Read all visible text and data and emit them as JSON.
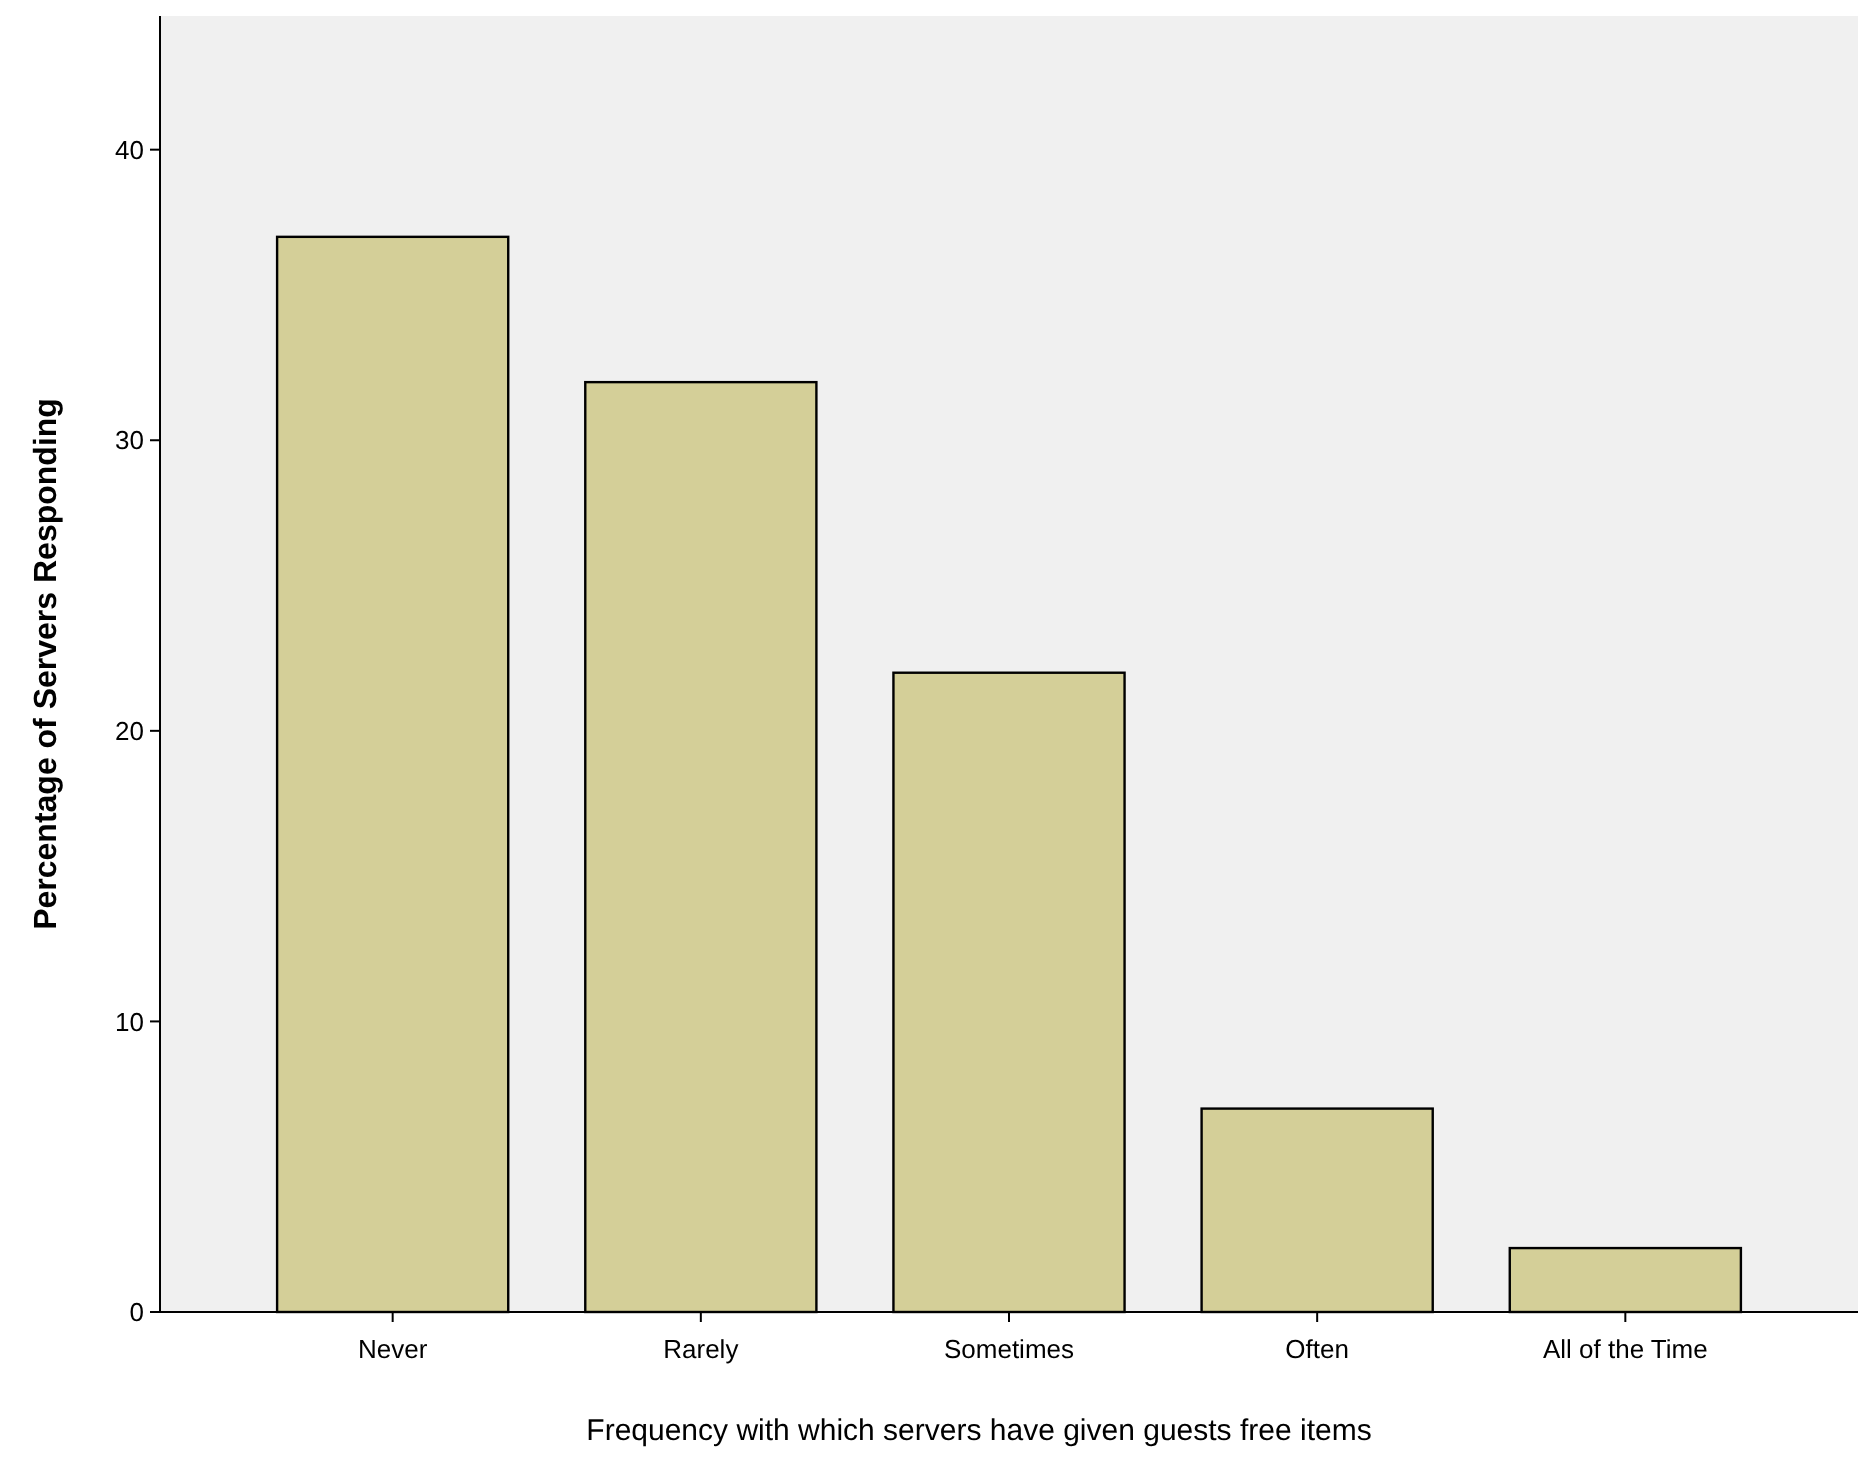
{
  "chart_data": {
    "type": "bar",
    "xlabel": "Frequency with which servers have given guests free items",
    "ylabel": "Percentage of Servers Responding",
    "categories": [
      "Never",
      "Rarely",
      "Sometimes",
      "Often",
      "All of the Time"
    ],
    "values": [
      37,
      32,
      22,
      7,
      2.2
    ],
    "color": "#d4cf98",
    "ylim": [
      0,
      44.6
    ],
    "yticks": [
      0,
      10,
      20,
      30,
      40
    ],
    "grid": false
  }
}
